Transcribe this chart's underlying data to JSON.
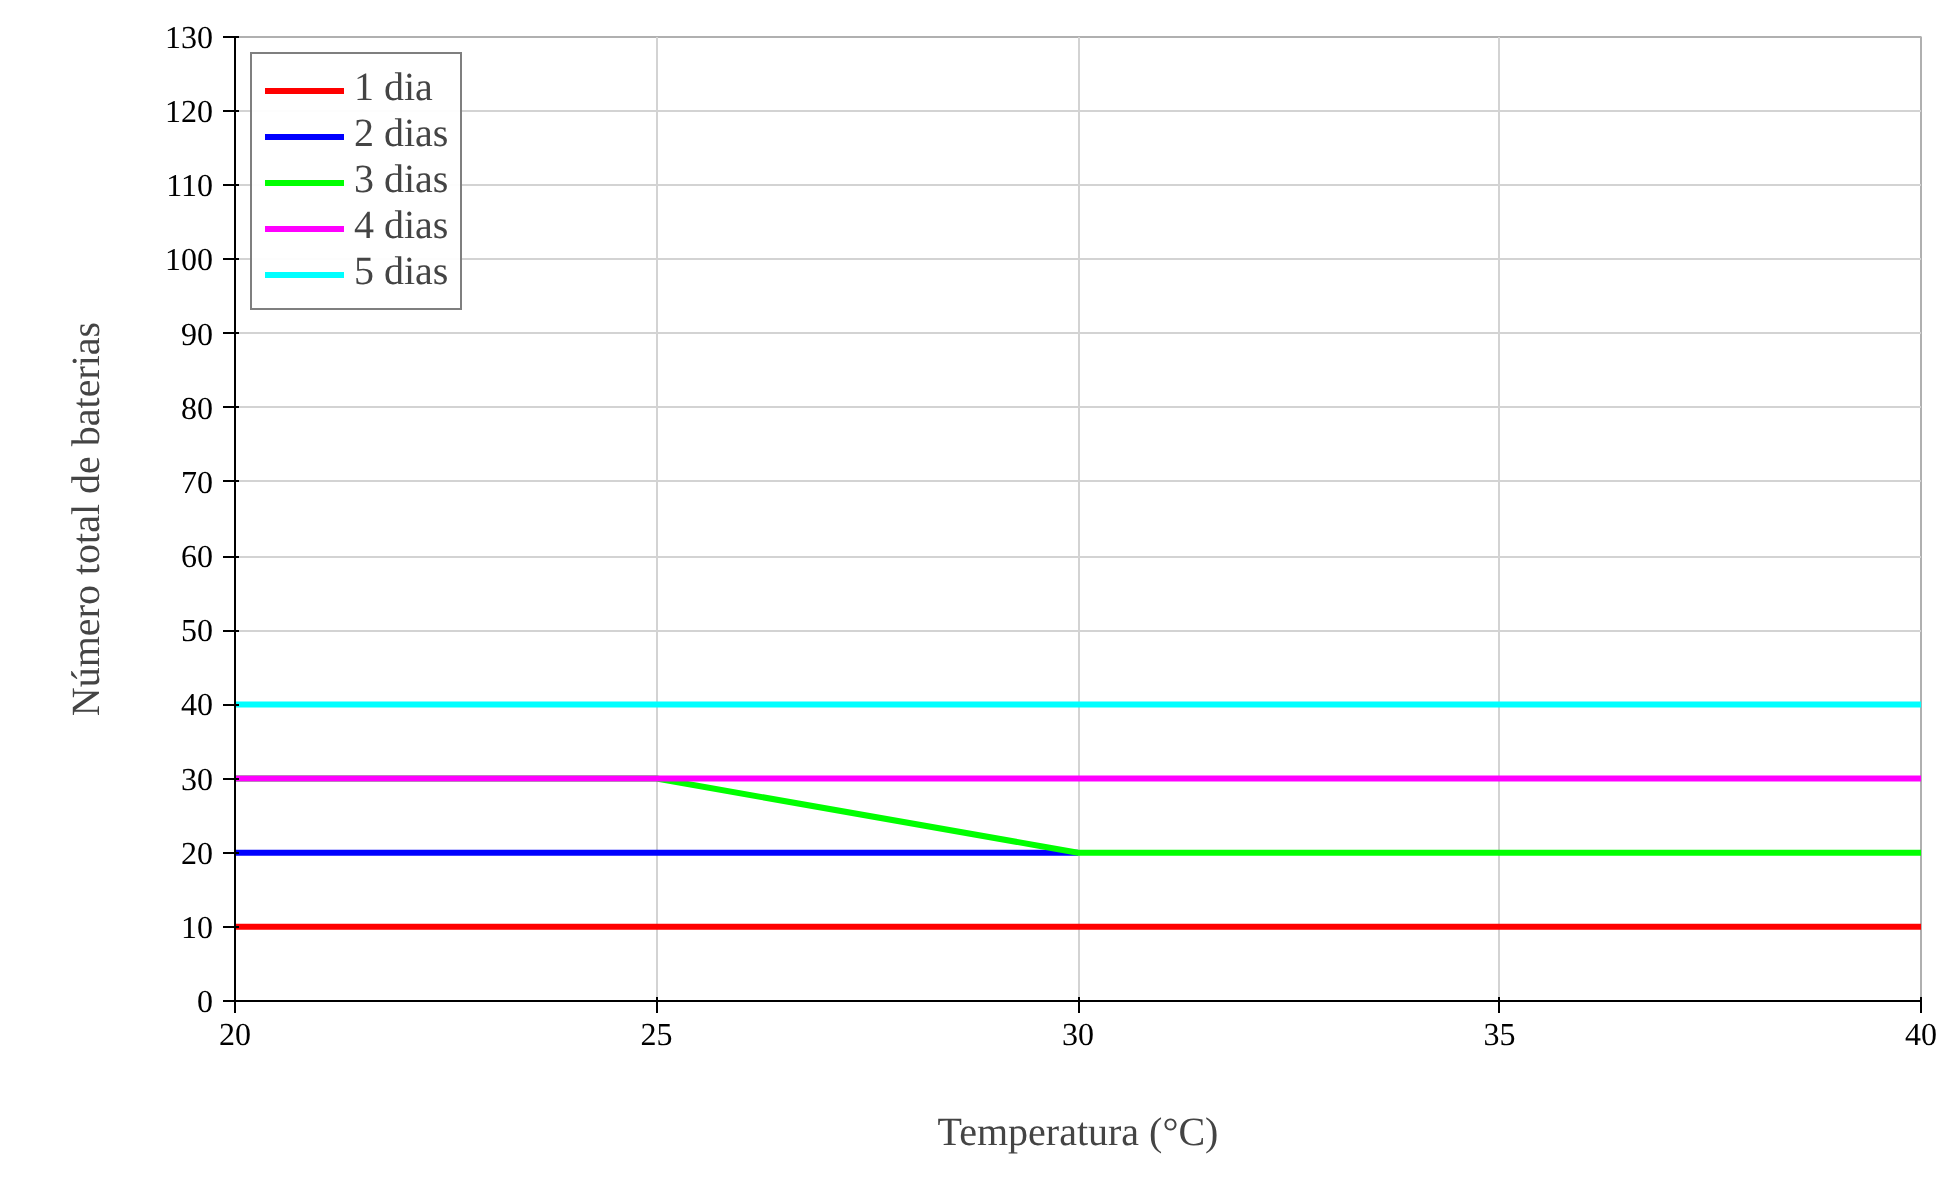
{
  "chart_data": {
    "type": "line",
    "xlabel": "Temperatura (°C)",
    "ylabel": "Número total de baterias",
    "x": [
      20,
      25,
      30,
      35,
      40
    ],
    "series": [
      {
        "name": "1 dia",
        "color": "#ff0000",
        "values": [
          10,
          10,
          10,
          10,
          10
        ]
      },
      {
        "name": "2 dias",
        "color": "#0000ff",
        "values": [
          20,
          20,
          20,
          null,
          null
        ]
      },
      {
        "name": "3 dias",
        "color": "#00ff00",
        "values": [
          30,
          30,
          20,
          20,
          20
        ]
      },
      {
        "name": "4 dias",
        "color": "#ff00ff",
        "values": [
          30,
          30,
          30,
          30,
          30
        ]
      },
      {
        "name": "5 dias",
        "color": "#00ffff",
        "values": [
          40,
          40,
          40,
          40,
          40
        ]
      }
    ],
    "xlim": [
      20,
      40
    ],
    "ylim": [
      0,
      130
    ],
    "xticks": [
      20,
      25,
      30,
      35,
      40
    ],
    "yticks": [
      0,
      10,
      20,
      30,
      40,
      50,
      60,
      70,
      80,
      90,
      100,
      110,
      120,
      130
    ],
    "grid": true,
    "legend": "top left",
    "line_style": "solid",
    "marker": "none"
  }
}
